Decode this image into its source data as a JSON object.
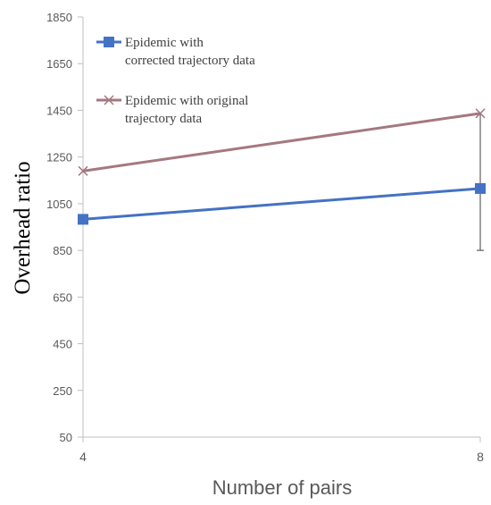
{
  "chart_data": {
    "type": "line",
    "x": [
      4,
      8
    ],
    "xlabel": "Number of pairs",
    "ylabel": "Overhead ratio",
    "ylim": [
      50,
      1850
    ],
    "yticks": [
      50,
      250,
      450,
      650,
      850,
      1050,
      1250,
      1450,
      1650,
      1850
    ],
    "xticks": [
      4,
      8
    ],
    "grid": false,
    "legend_position": "top-left",
    "series": [
      {
        "name": "Epidemic with corrected trajectory data",
        "name_lines": [
          "Epidemic with",
          "corrected trajectory data"
        ],
        "values": [
          983,
          1115
        ],
        "color": "#4472c4",
        "marker": "square"
      },
      {
        "name": "Epidemic with original trajectory data",
        "name_lines": [
          "Epidemic with original",
          "trajectory data"
        ],
        "values": [
          1190,
          1437
        ],
        "color": "#a5787f",
        "marker": "x"
      }
    ]
  }
}
